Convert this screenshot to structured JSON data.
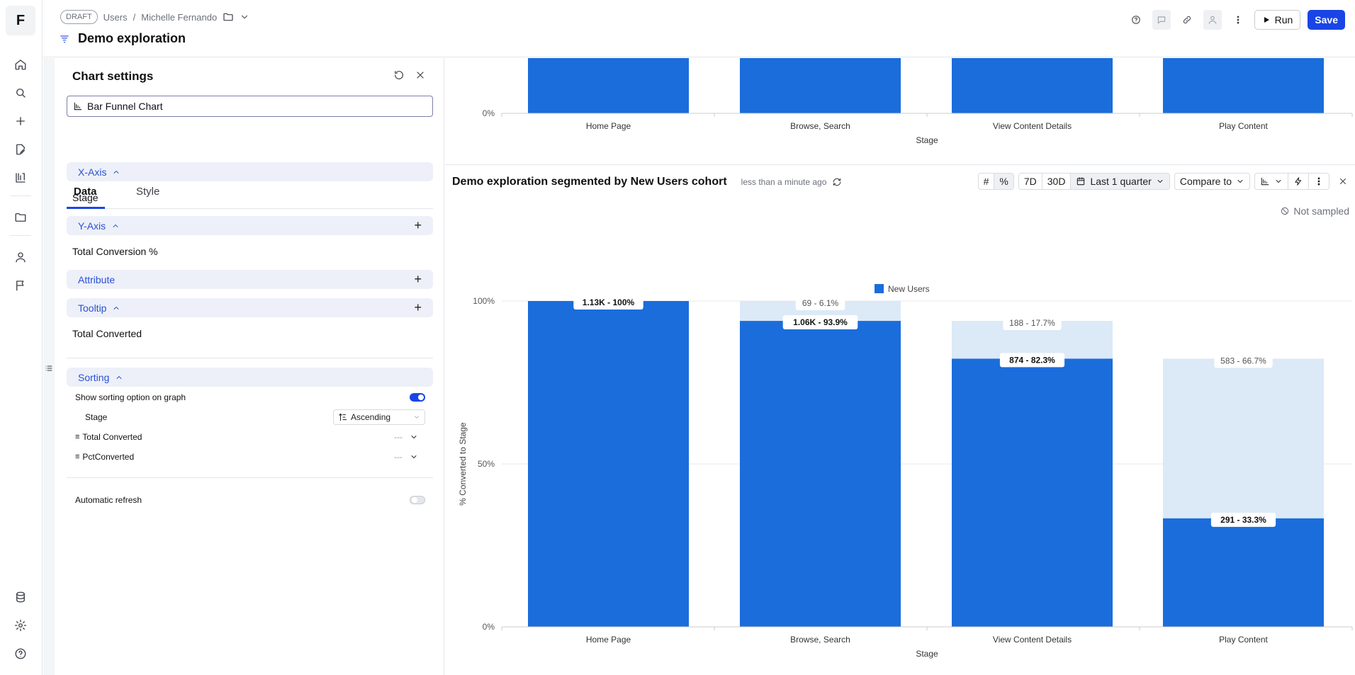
{
  "app": {
    "logo_letter": "F"
  },
  "header": {
    "draft_label": "DRAFT",
    "crumb_1": "Users",
    "crumb_sep": "/",
    "crumb_2": "Michelle Fernando",
    "title": "Demo exploration",
    "run_label": "Run",
    "save_label": "Save"
  },
  "settings": {
    "title": "Chart settings",
    "chart_type": "Bar Funnel Chart",
    "tabs": [
      "Data",
      "Style"
    ],
    "x_axis": {
      "label": "X-Axis",
      "value": "Stage"
    },
    "y_axis": {
      "label": "Y-Axis",
      "value": "Total Conversion %"
    },
    "attribute": {
      "label": "Attribute"
    },
    "tooltip": {
      "label": "Tooltip",
      "value": "Total Converted"
    },
    "sorting": {
      "label": "Sorting",
      "show_option_label": "Show sorting option on graph",
      "show_option_on": true,
      "rows": [
        {
          "label": "Stage",
          "value": "Ascending"
        },
        {
          "label": "Total Converted",
          "value": "---"
        },
        {
          "label": "PctConverted",
          "value": "---"
        }
      ]
    },
    "auto_refresh": {
      "label": "Automatic refresh",
      "on": false
    }
  },
  "chart1": {
    "xlabel": "Stage",
    "zero_label": "0%"
  },
  "chart2": {
    "title": "Demo exploration segmented by New Users cohort",
    "updated": "less than a minute ago",
    "tools": {
      "hash": "#",
      "pct": "%",
      "d7": "7D",
      "d30": "30D",
      "range": "Last 1 quarter",
      "compare": "Compare to"
    },
    "not_sampled": "Not sampled"
  },
  "colors": {
    "primary_bar": "#1a6ddb",
    "dropoff_bar": "#dce9f7",
    "accent": "#1a45e6"
  },
  "chart_data": [
    {
      "type": "bar",
      "title": "",
      "categories": [
        "Home Page",
        "Browse, Search",
        "View Content Details",
        "Play Content"
      ],
      "xlabel": "Stage",
      "ylabel": "",
      "yticks": [
        "0%"
      ],
      "note": "top chart scrolled, only bottom portion visible"
    },
    {
      "type": "bar",
      "title": "Demo exploration segmented by New Users cohort",
      "categories": [
        "Home Page",
        "Browse, Search",
        "View Content Details",
        "Play Content"
      ],
      "xlabel": "Stage",
      "ylabel": "% Converted to Stage",
      "ylim": [
        0,
        100
      ],
      "yticks": [
        "0%",
        "50%",
        "100%"
      ],
      "legend": "top-center",
      "series": [
        {
          "name": "New Users",
          "values": [
            100,
            93.9,
            82.3,
            33.3
          ],
          "labels": [
            "1.13K - 100%",
            "1.06K - 93.9%",
            "874 - 82.3%",
            "291 - 33.3%"
          ]
        },
        {
          "values": [
            0,
            6.1,
            17.7,
            66.7
          ],
          "base": [
            100,
            100,
            100,
            100
          ],
          "labels": [
            "",
            "69 - 6.1%",
            "188 - 17.7%",
            "583 - 66.7%"
          ]
        }
      ],
      "dropoff_tops": [
        100,
        100,
        93.9,
        82.3
      ]
    }
  ]
}
